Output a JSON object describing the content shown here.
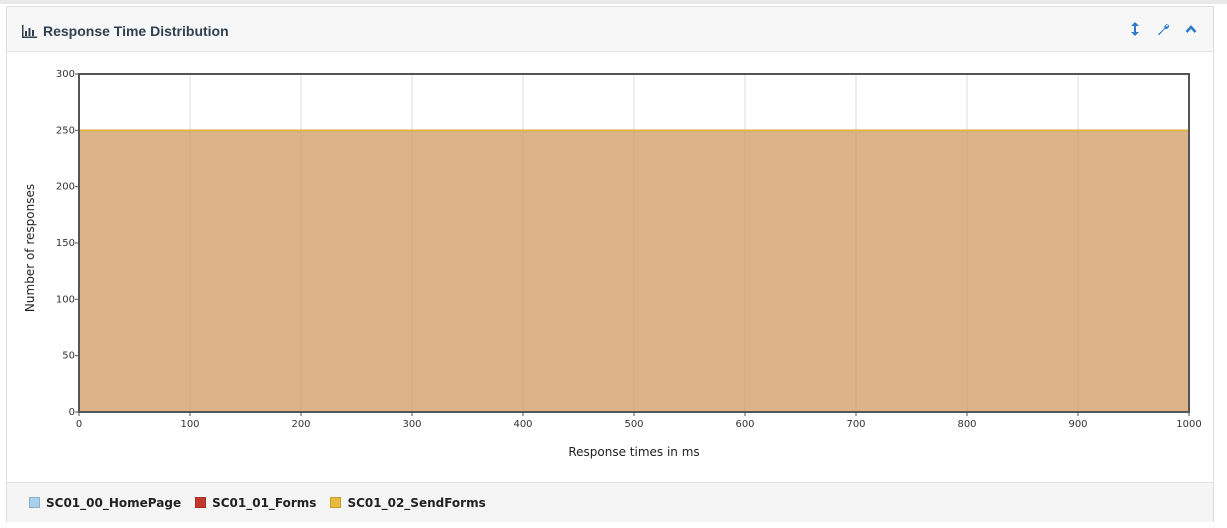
{
  "panel": {
    "title": "Response Time Distribution",
    "icons": [
      "bar-chart-icon",
      "resize-vertical-icon",
      "wrench-icon",
      "chevron-up-icon"
    ]
  },
  "chart_data": {
    "type": "area",
    "xlabel": "Response times in ms",
    "ylabel": "Number of responses",
    "xlim": [
      0,
      1000
    ],
    "ylim": [
      0,
      300
    ],
    "xticks": [
      0,
      100,
      200,
      300,
      400,
      500,
      600,
      700,
      800,
      900,
      1000
    ],
    "yticks": [
      0,
      50,
      100,
      150,
      200,
      250,
      300
    ],
    "grid": true,
    "legend_position": "bottom",
    "series": [
      {
        "name": "SC01_00_HomePage",
        "color": "#a9cfed",
        "x": [
          0,
          1000
        ],
        "y": [
          250,
          250
        ]
      },
      {
        "name": "SC01_01_Forms",
        "color": "#c0392b",
        "x": [
          0,
          1000
        ],
        "y": [
          250,
          250
        ]
      },
      {
        "name": "SC01_02_SendForms",
        "color": "#e8b93a",
        "x": [
          0,
          1000
        ],
        "y": [
          250,
          250
        ]
      }
    ]
  }
}
